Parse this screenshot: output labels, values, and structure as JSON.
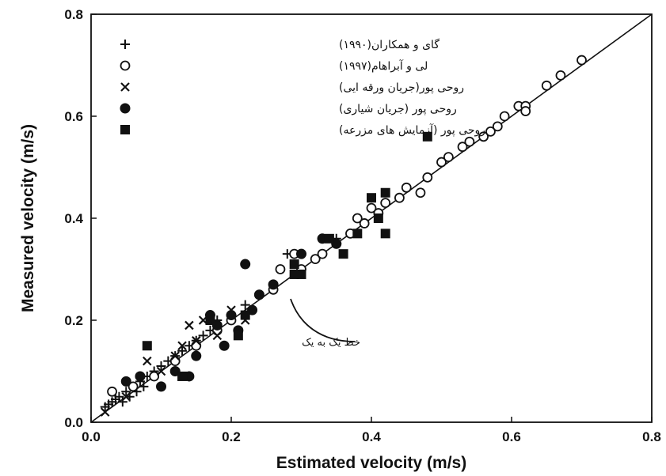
{
  "chart_data": {
    "type": "scatter",
    "title": "",
    "xlabel": "Estimated velocity (m/s)",
    "ylabel": "Measured velocity (m/s)",
    "xlim": [
      0,
      0.8
    ],
    "ylim": [
      0,
      0.8
    ],
    "x_ticks": [
      "0.0",
      "0.2",
      "0.4",
      "0.6",
      "0.8"
    ],
    "y_ticks": [
      "0.0",
      "0.2",
      "0.4",
      "0.6",
      "0.8"
    ],
    "grid": false,
    "legend_position": "top-left",
    "reference_line": {
      "label": "خط یک به یک",
      "slope": 1,
      "intercept": 0
    },
    "series": [
      {
        "name": "گای و همکاران(۱۹۹۰)",
        "marker": "plus",
        "points": [
          [
            0.02,
            0.03
          ],
          [
            0.025,
            0.035
          ],
          [
            0.03,
            0.04
          ],
          [
            0.035,
            0.045
          ],
          [
            0.04,
            0.05
          ],
          [
            0.045,
            0.04
          ],
          [
            0.05,
            0.06
          ],
          [
            0.055,
            0.05
          ],
          [
            0.06,
            0.07
          ],
          [
            0.065,
            0.06
          ],
          [
            0.07,
            0.08
          ],
          [
            0.075,
            0.07
          ],
          [
            0.08,
            0.09
          ],
          [
            0.09,
            0.1
          ],
          [
            0.1,
            0.11
          ],
          [
            0.11,
            0.12
          ],
          [
            0.12,
            0.13
          ],
          [
            0.13,
            0.14
          ],
          [
            0.14,
            0.15
          ],
          [
            0.15,
            0.16
          ],
          [
            0.16,
            0.17
          ],
          [
            0.17,
            0.18
          ],
          [
            0.18,
            0.2
          ],
          [
            0.22,
            0.23
          ],
          [
            0.28,
            0.33
          ],
          [
            0.35,
            0.36
          ]
        ]
      },
      {
        "name": "لی و آبراهام(۱۹۹۷)",
        "marker": "open-circle",
        "points": [
          [
            0.03,
            0.06
          ],
          [
            0.06,
            0.07
          ],
          [
            0.09,
            0.09
          ],
          [
            0.12,
            0.12
          ],
          [
            0.15,
            0.15
          ],
          [
            0.18,
            0.18
          ],
          [
            0.2,
            0.2
          ],
          [
            0.24,
            0.25
          ],
          [
            0.26,
            0.26
          ],
          [
            0.27,
            0.3
          ],
          [
            0.29,
            0.33
          ],
          [
            0.3,
            0.3
          ],
          [
            0.32,
            0.32
          ],
          [
            0.33,
            0.33
          ],
          [
            0.35,
            0.35
          ],
          [
            0.37,
            0.37
          ],
          [
            0.38,
            0.4
          ],
          [
            0.39,
            0.39
          ],
          [
            0.4,
            0.42
          ],
          [
            0.41,
            0.41
          ],
          [
            0.42,
            0.43
          ],
          [
            0.44,
            0.44
          ],
          [
            0.45,
            0.46
          ],
          [
            0.47,
            0.45
          ],
          [
            0.48,
            0.48
          ],
          [
            0.5,
            0.51
          ],
          [
            0.51,
            0.52
          ],
          [
            0.53,
            0.54
          ],
          [
            0.54,
            0.55
          ],
          [
            0.56,
            0.56
          ],
          [
            0.57,
            0.57
          ],
          [
            0.58,
            0.58
          ],
          [
            0.59,
            0.6
          ],
          [
            0.61,
            0.62
          ],
          [
            0.62,
            0.62
          ],
          [
            0.62,
            0.61
          ],
          [
            0.65,
            0.66
          ],
          [
            0.67,
            0.68
          ],
          [
            0.7,
            0.71
          ]
        ]
      },
      {
        "name": "روحی پور(جریان ورقه ایی)",
        "marker": "x",
        "points": [
          [
            0.02,
            0.02
          ],
          [
            0.05,
            0.05
          ],
          [
            0.08,
            0.12
          ],
          [
            0.1,
            0.1
          ],
          [
            0.12,
            0.13
          ],
          [
            0.13,
            0.15
          ],
          [
            0.14,
            0.19
          ],
          [
            0.15,
            0.16
          ],
          [
            0.16,
            0.2
          ],
          [
            0.18,
            0.17
          ],
          [
            0.2,
            0.22
          ],
          [
            0.22,
            0.2
          ]
        ]
      },
      {
        "name": "روحی پور (جریان شیاری)",
        "marker": "filled-circle",
        "points": [
          [
            0.05,
            0.08
          ],
          [
            0.07,
            0.09
          ],
          [
            0.1,
            0.07
          ],
          [
            0.12,
            0.1
          ],
          [
            0.14,
            0.09
          ],
          [
            0.15,
            0.13
          ],
          [
            0.17,
            0.21
          ],
          [
            0.18,
            0.19
          ],
          [
            0.19,
            0.15
          ],
          [
            0.2,
            0.21
          ],
          [
            0.21,
            0.18
          ],
          [
            0.22,
            0.31
          ],
          [
            0.23,
            0.22
          ],
          [
            0.24,
            0.25
          ],
          [
            0.26,
            0.27
          ],
          [
            0.3,
            0.33
          ],
          [
            0.33,
            0.36
          ],
          [
            0.35,
            0.35
          ]
        ]
      },
      {
        "name": "روحی پور (آزمایش های مزرعه)",
        "marker": "filled-square",
        "points": [
          [
            0.08,
            0.15
          ],
          [
            0.13,
            0.09
          ],
          [
            0.17,
            0.2
          ],
          [
            0.21,
            0.17
          ],
          [
            0.22,
            0.21
          ],
          [
            0.29,
            0.29
          ],
          [
            0.29,
            0.31
          ],
          [
            0.3,
            0.29
          ],
          [
            0.34,
            0.36
          ],
          [
            0.36,
            0.33
          ],
          [
            0.38,
            0.37
          ],
          [
            0.4,
            0.44
          ],
          [
            0.41,
            0.4
          ],
          [
            0.42,
            0.45
          ],
          [
            0.42,
            0.37
          ],
          [
            0.48,
            0.56
          ]
        ]
      }
    ]
  }
}
